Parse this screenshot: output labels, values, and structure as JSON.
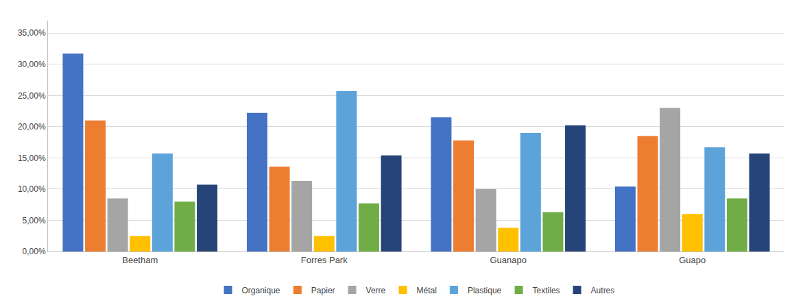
{
  "chart_data": {
    "type": "bar",
    "categories": [
      "Beetham",
      "Forres Park",
      "Guanapo",
      "Guapo"
    ],
    "series": [
      {
        "name": "Organique",
        "color": "#4472C4",
        "values": [
          0.317,
          0.222,
          0.215,
          0.104
        ]
      },
      {
        "name": "Papier",
        "color": "#ED7D31",
        "values": [
          0.21,
          0.136,
          0.178,
          0.185
        ]
      },
      {
        "name": "Verre",
        "color": "#A5A5A5",
        "values": [
          0.085,
          0.113,
          0.1,
          0.23
        ]
      },
      {
        "name": "Métal",
        "color": "#FFC000",
        "values": [
          0.025,
          0.025,
          0.038,
          0.06
        ]
      },
      {
        "name": "Plastique",
        "color": "#5BA3D9",
        "values": [
          0.157,
          0.257,
          0.19,
          0.167
        ]
      },
      {
        "name": "Textiles",
        "color": "#70AD47",
        "values": [
          0.08,
          0.077,
          0.063,
          0.085
        ]
      },
      {
        "name": "Autres",
        "color": "#264478",
        "values": [
          0.107,
          0.154,
          0.202,
          0.157
        ]
      }
    ],
    "ylim": [
      0,
      0.37
    ],
    "yticks": [
      {
        "value": 0.0,
        "label": "0,00%"
      },
      {
        "value": 0.05,
        "label": "5,00%"
      },
      {
        "value": 0.1,
        "label": "10,00%"
      },
      {
        "value": 0.15,
        "label": "15,00%"
      },
      {
        "value": 0.2,
        "label": "20,00%"
      },
      {
        "value": 0.25,
        "label": "25,00%"
      },
      {
        "value": 0.3,
        "label": "30,00%"
      },
      {
        "value": 0.35,
        "label": "35,00%"
      }
    ],
    "grid": true,
    "legend": "bottom"
  }
}
